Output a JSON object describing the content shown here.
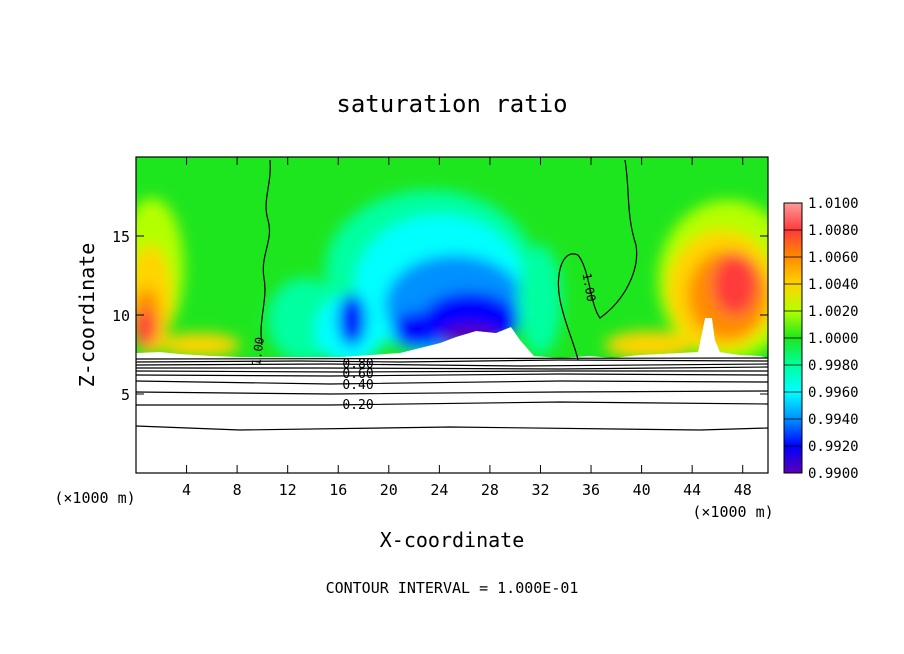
{
  "chart_data": {
    "type": "heatmap",
    "title": "saturation ratio",
    "xlabel": "X-coordinate",
    "ylabel": "Z-coordinate",
    "x_unit_label": "(×1000 m)",
    "x_unit_label_2": "(×1000 m)",
    "xlim": [
      0,
      50
    ],
    "ylim": [
      0,
      20
    ],
    "xticks": [
      "4",
      "8",
      "12",
      "16",
      "20",
      "24",
      "28",
      "32",
      "36",
      "40",
      "44",
      "48"
    ],
    "yticks": [
      "5",
      "10",
      "15"
    ],
    "colorbar": {
      "min": 0.99,
      "max": 1.01,
      "labels": [
        "1.0100",
        "1.0080",
        "1.0060",
        "1.0040",
        "1.0020",
        "1.0000",
        "0.9980",
        "0.9960",
        "0.9940",
        "0.9920",
        "0.9900"
      ],
      "colors": [
        "#ff9a9a",
        "#ff3a3a",
        "#ff8c00",
        "#ffd400",
        "#b4ff00",
        "#1ee61e",
        "#00ffa0",
        "#00ffff",
        "#0090ff",
        "#0000ff",
        "#5a00b4"
      ]
    },
    "contour_labels": [
      "1.00",
      "1.00",
      "0.80",
      "0.60",
      "0.40",
      "0.20"
    ],
    "footer": "CONTOUR INTERVAL = 1.000E-01"
  }
}
